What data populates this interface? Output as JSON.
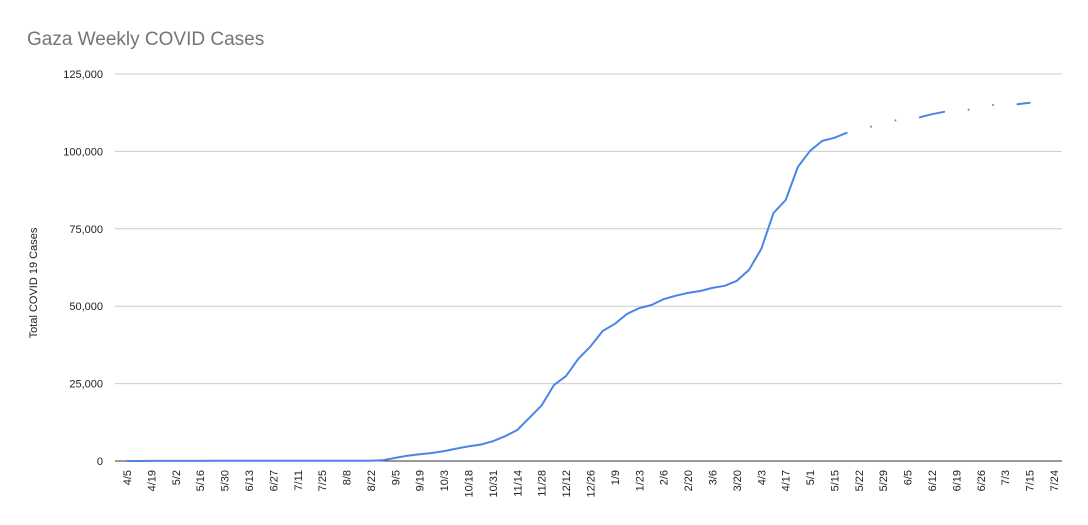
{
  "chart_data": {
    "type": "line",
    "title": "Gaza Weekly COVID Cases",
    "y_label": "Total COVID 19 Cases",
    "categories": [
      "4/5",
      null,
      "4/19",
      null,
      "5/2",
      null,
      "5/16",
      null,
      "5/30",
      null,
      "6/13",
      null,
      "6/27",
      null,
      "7/11",
      null,
      "7/25",
      null,
      "8/8",
      null,
      "8/22",
      null,
      "9/5",
      null,
      "9/19",
      null,
      "10/3",
      null,
      "10/18",
      null,
      "10/31",
      null,
      "11/14",
      null,
      "11/28",
      null,
      "12/12",
      null,
      "12/26",
      null,
      "1/9",
      null,
      "1/23",
      null,
      "2/6",
      null,
      "2/20",
      null,
      "3/6",
      null,
      "3/20",
      null,
      "4/3",
      null,
      "4/17",
      null,
      "5/1",
      null,
      "5/15",
      null,
      "5/22",
      null,
      "5/29",
      null,
      "6/5",
      null,
      "6/12",
      null,
      "6/19",
      null,
      "6/26",
      null,
      "7/3",
      null,
      "7/15",
      null,
      "7/24"
    ],
    "series": [
      {
        "name": "Total COVID 19 Cases",
        "color": "#4a86e8",
        "values": [
          13,
          13,
          17,
          20,
          20,
          29,
          40,
          55,
          60,
          65,
          68,
          72,
          72,
          72,
          75,
          80,
          80,
          81,
          85,
          90,
          100,
          250,
          1000,
          1700,
          2200,
          2600,
          3200,
          4000,
          4700,
          5300,
          6400,
          8000,
          10000,
          14000,
          18000,
          24500,
          27500,
          33000,
          37000,
          42000,
          44300,
          47500,
          49400,
          50400,
          52300,
          53400,
          54300,
          54900,
          55900,
          56600,
          58200,
          61800,
          68500,
          80100,
          84300,
          95000,
          100200,
          103400,
          104400,
          106000,
          null,
          108000,
          null,
          110000,
          null,
          111000,
          112000,
          112800,
          null,
          113500,
          null,
          115000,
          null,
          115200,
          115700,
          null,
          null
        ]
      }
    ],
    "ylim": [
      0,
      125000
    ],
    "yticks": [
      0,
      {
        "value": 25000,
        "label": "25,000"
      },
      {
        "value": 50000,
        "label": "50,000"
      },
      {
        "value": 75000,
        "label": "75,000"
      },
      {
        "value": 100000,
        "label": "100,000"
      },
      {
        "value": 125000,
        "label": "125,000"
      }
    ],
    "grid": true
  }
}
